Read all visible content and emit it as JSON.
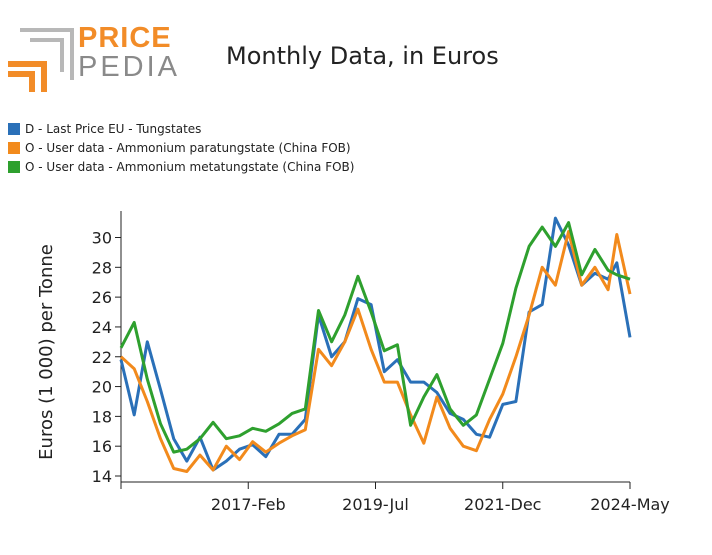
{
  "logo": {
    "word1": "PRICE",
    "word2": "PEDIA",
    "accent_color": "#f28c28",
    "secondary_color": "#8a8a8a"
  },
  "chart_data": {
    "type": "line",
    "title": "Monthly Data, in Euros",
    "ylabel": "Euros (1 000) per Tonne",
    "xlabel": "",
    "ylim": [
      14,
      31.5
    ],
    "yticks": [
      14,
      16,
      18,
      20,
      22,
      24,
      26,
      28,
      30
    ],
    "xlim": [
      "2014-09",
      "2024-05"
    ],
    "xticks": [
      {
        "date": "2017-02",
        "label": "2017-Feb"
      },
      {
        "date": "2019-07",
        "label": "2019-Jul"
      },
      {
        "date": "2021-12",
        "label": "2021-Dec"
      },
      {
        "date": "2024-05",
        "label": "2024-May"
      }
    ],
    "legend_position": "top-left",
    "grid": false,
    "series": [
      {
        "name": "D - Last Price EU - Tungstates",
        "color": "#2a70b8",
        "points": [
          [
            "2014-09",
            21.8
          ],
          [
            "2014-12",
            18.1
          ],
          [
            "2015-03",
            23.0
          ],
          [
            "2015-06",
            19.8
          ],
          [
            "2015-09",
            16.5
          ],
          [
            "2015-12",
            15.0
          ],
          [
            "2016-03",
            16.6
          ],
          [
            "2016-06",
            14.4
          ],
          [
            "2016-09",
            15.0
          ],
          [
            "2016-12",
            15.8
          ],
          [
            "2017-03",
            16.1
          ],
          [
            "2017-06",
            15.3
          ],
          [
            "2017-09",
            16.8
          ],
          [
            "2017-12",
            16.8
          ],
          [
            "2018-03",
            17.8
          ],
          [
            "2018-06",
            24.8
          ],
          [
            "2018-09",
            22.0
          ],
          [
            "2018-12",
            23.0
          ],
          [
            "2019-03",
            25.9
          ],
          [
            "2019-06",
            25.5
          ],
          [
            "2019-09",
            21.0
          ],
          [
            "2019-12",
            21.8
          ],
          [
            "2020-03",
            20.3
          ],
          [
            "2020-06",
            20.3
          ],
          [
            "2020-09",
            19.6
          ],
          [
            "2020-12",
            18.2
          ],
          [
            "2021-03",
            17.8
          ],
          [
            "2021-06",
            16.8
          ],
          [
            "2021-09",
            16.6
          ],
          [
            "2021-12",
            18.8
          ],
          [
            "2022-03",
            19.0
          ],
          [
            "2022-06",
            25.0
          ],
          [
            "2022-09",
            25.5
          ],
          [
            "2022-12",
            31.3
          ],
          [
            "2023-03",
            29.5
          ],
          [
            "2023-06",
            26.8
          ],
          [
            "2023-09",
            27.6
          ],
          [
            "2023-12",
            27.2
          ],
          [
            "2024-02",
            28.3
          ],
          [
            "2024-05",
            23.3
          ]
        ]
      },
      {
        "name": "O - User data - Ammonium paratungstate (China FOB)",
        "color": "#f28a1c",
        "points": [
          [
            "2014-09",
            22.0
          ],
          [
            "2014-12",
            21.2
          ],
          [
            "2015-03",
            19.0
          ],
          [
            "2015-06",
            16.5
          ],
          [
            "2015-09",
            14.5
          ],
          [
            "2015-12",
            14.3
          ],
          [
            "2016-03",
            15.4
          ],
          [
            "2016-06",
            14.4
          ],
          [
            "2016-09",
            16.0
          ],
          [
            "2016-12",
            15.1
          ],
          [
            "2017-03",
            16.3
          ],
          [
            "2017-06",
            15.6
          ],
          [
            "2017-09",
            16.2
          ],
          [
            "2017-12",
            16.7
          ],
          [
            "2018-03",
            17.1
          ],
          [
            "2018-06",
            22.5
          ],
          [
            "2018-09",
            21.4
          ],
          [
            "2018-12",
            23.0
          ],
          [
            "2019-03",
            25.2
          ],
          [
            "2019-06",
            22.5
          ],
          [
            "2019-09",
            20.3
          ],
          [
            "2019-12",
            20.3
          ],
          [
            "2020-03",
            18.1
          ],
          [
            "2020-06",
            16.2
          ],
          [
            "2020-09",
            19.3
          ],
          [
            "2020-12",
            17.2
          ],
          [
            "2021-03",
            16.0
          ],
          [
            "2021-06",
            15.7
          ],
          [
            "2021-09",
            17.8
          ],
          [
            "2021-12",
            19.5
          ],
          [
            "2022-03",
            22.0
          ],
          [
            "2022-06",
            24.8
          ],
          [
            "2022-09",
            28.0
          ],
          [
            "2022-12",
            26.8
          ],
          [
            "2023-03",
            30.4
          ],
          [
            "2023-06",
            26.8
          ],
          [
            "2023-09",
            28.0
          ],
          [
            "2023-12",
            26.5
          ],
          [
            "2024-02",
            30.2
          ],
          [
            "2024-05",
            26.2
          ]
        ]
      },
      {
        "name": "O - User data - Ammonium metatungstate (China FOB)",
        "color": "#2ea02e",
        "points": [
          [
            "2014-09",
            22.6
          ],
          [
            "2014-12",
            24.3
          ],
          [
            "2015-03",
            20.5
          ],
          [
            "2015-06",
            17.5
          ],
          [
            "2015-09",
            15.6
          ],
          [
            "2015-12",
            15.8
          ],
          [
            "2016-03",
            16.5
          ],
          [
            "2016-06",
            17.6
          ],
          [
            "2016-09",
            16.5
          ],
          [
            "2016-12",
            16.7
          ],
          [
            "2017-03",
            17.2
          ],
          [
            "2017-06",
            17.0
          ],
          [
            "2017-09",
            17.5
          ],
          [
            "2017-12",
            18.2
          ],
          [
            "2018-03",
            18.5
          ],
          [
            "2018-06",
            25.1
          ],
          [
            "2018-09",
            23.0
          ],
          [
            "2018-12",
            24.8
          ],
          [
            "2019-03",
            27.4
          ],
          [
            "2019-06",
            25.0
          ],
          [
            "2019-09",
            22.4
          ],
          [
            "2019-12",
            22.8
          ],
          [
            "2020-03",
            17.4
          ],
          [
            "2020-06",
            19.3
          ],
          [
            "2020-09",
            20.8
          ],
          [
            "2020-12",
            18.5
          ],
          [
            "2021-03",
            17.4
          ],
          [
            "2021-06",
            18.1
          ],
          [
            "2021-09",
            20.5
          ],
          [
            "2021-12",
            22.9
          ],
          [
            "2022-03",
            26.6
          ],
          [
            "2022-06",
            29.4
          ],
          [
            "2022-09",
            30.7
          ],
          [
            "2022-12",
            29.4
          ],
          [
            "2023-03",
            31.0
          ],
          [
            "2023-06",
            27.5
          ],
          [
            "2023-09",
            29.2
          ],
          [
            "2023-12",
            27.8
          ],
          [
            "2024-02",
            27.5
          ],
          [
            "2024-05",
            27.2
          ]
        ]
      }
    ]
  }
}
